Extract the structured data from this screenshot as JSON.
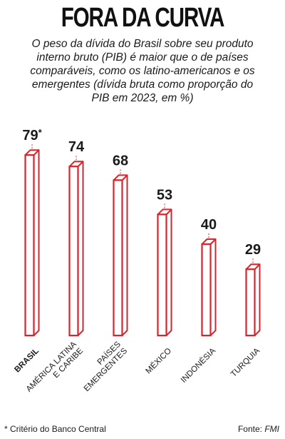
{
  "title": "FORA DA CURVA",
  "subtitle": "O peso da dívida do Brasil sobre seu produto interno bruto (PIB) é maior que o de países comparáveis, como os latino-americanos e os emergentes (dívida bruta como proporção do PIB em 2023, em %)",
  "footnote": "* Critério do Banco Central",
  "source_label": "Fonte: ",
  "source_name": "FMI",
  "colors": {
    "accent": "#d6262d",
    "text": "#1a1a1a"
  },
  "chart_data": {
    "type": "bar",
    "title": "",
    "xlabel": "",
    "ylabel": "",
    "ylim": [
      0,
      85
    ],
    "categories": [
      [
        "BRASIL"
      ],
      [
        "AMÉRICA LATINA",
        "E CARIBE"
      ],
      [
        "PAÍSES",
        "EMERGENTES"
      ],
      [
        "MÉXICO"
      ],
      [
        "INDONÉSIA"
      ],
      [
        "TURQUIA"
      ]
    ],
    "values": [
      79,
      74,
      68,
      53,
      40,
      29
    ],
    "value_labels": [
      "79",
      "74",
      "68",
      "53",
      "40",
      "29"
    ],
    "annotations": [
      "*",
      "",
      "",
      "",
      "",
      ""
    ],
    "highlight_index": 0
  }
}
